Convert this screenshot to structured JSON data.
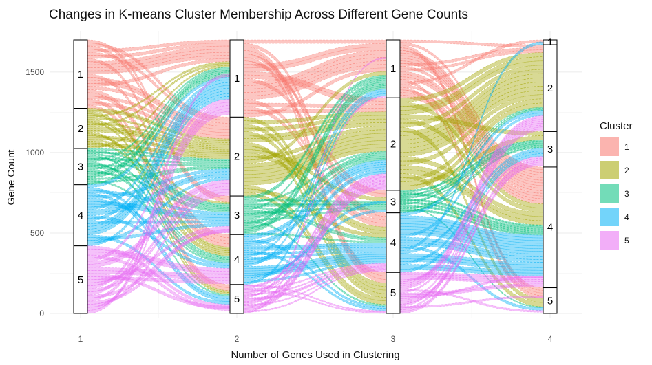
{
  "colors": {
    "1": "#F8766D",
    "2": "#A3A500",
    "3": "#00BF7D",
    "4": "#00B0F6",
    "5": "#E76BF3"
  },
  "chart_data": {
    "type": "alluvial",
    "title": "Changes in K-means Cluster Membership Across Different Gene Counts",
    "xlabel": "Number of Genes Used in Clustering",
    "ylabel": "Gene Count",
    "x": [
      1,
      2,
      3,
      4
    ],
    "x_tick_labels": [
      "1",
      "2",
      "3",
      "4"
    ],
    "y_ticks": [
      0,
      500,
      1000,
      1500
    ],
    "ylim": [
      0,
      1700
    ],
    "total": 1700,
    "grid": true,
    "legend": {
      "title": "Cluster",
      "position": "right",
      "entries": [
        "1",
        "2",
        "3",
        "4",
        "5"
      ]
    },
    "strata": [
      {
        "x": 1,
        "clusters": [
          {
            "cluster": "1",
            "count": 425
          },
          {
            "cluster": "2",
            "count": 250
          },
          {
            "cluster": "3",
            "count": 225
          },
          {
            "cluster": "4",
            "count": 380
          },
          {
            "cluster": "5",
            "count": 420
          }
        ]
      },
      {
        "x": 2,
        "clusters": [
          {
            "cluster": "1",
            "count": 480
          },
          {
            "cluster": "2",
            "count": 490
          },
          {
            "cluster": "3",
            "count": 240
          },
          {
            "cluster": "4",
            "count": 310
          },
          {
            "cluster": "5",
            "count": 180
          }
        ]
      },
      {
        "x": 3,
        "clusters": [
          {
            "cluster": "1",
            "count": 360
          },
          {
            "cluster": "2",
            "count": 575
          },
          {
            "cluster": "3",
            "count": 140
          },
          {
            "cluster": "4",
            "count": 370
          },
          {
            "cluster": "5",
            "count": 255
          }
        ]
      },
      {
        "x": 4,
        "clusters": [
          {
            "cluster": "1",
            "count": 30
          },
          {
            "cluster": "2",
            "count": 540
          },
          {
            "cluster": "3",
            "count": 220
          },
          {
            "cluster": "4",
            "count": 750
          },
          {
            "cluster": "5",
            "count": 160
          }
        ]
      }
    ]
  }
}
